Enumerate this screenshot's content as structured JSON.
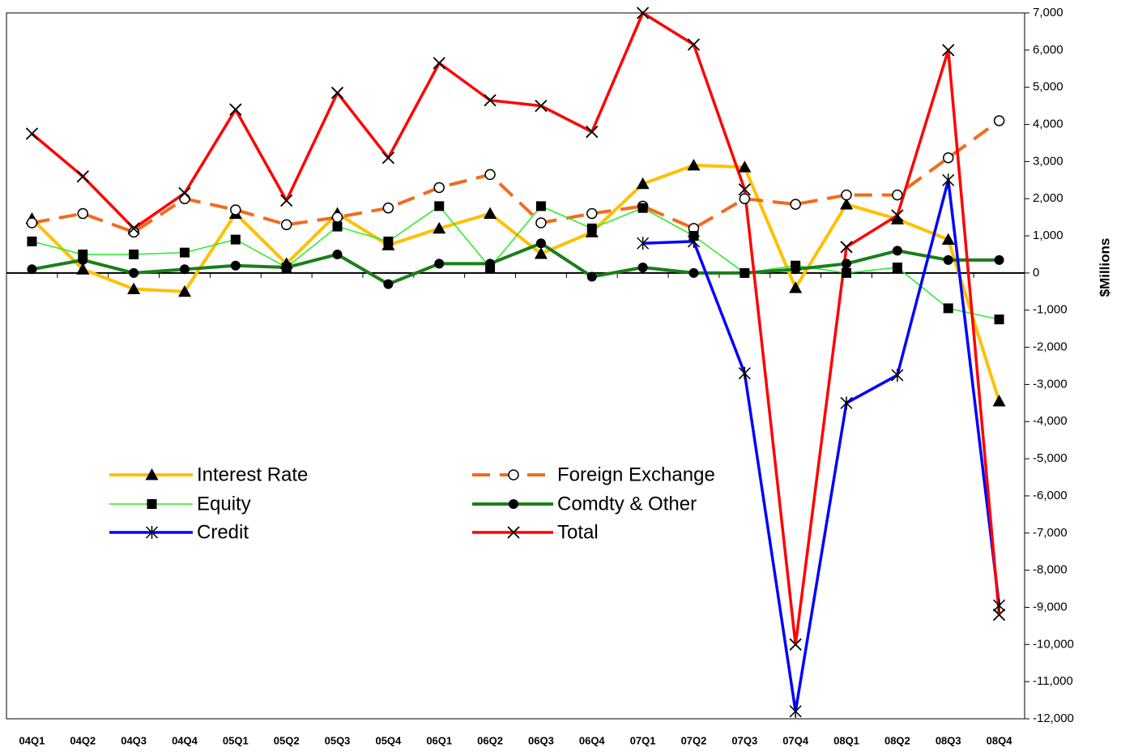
{
  "chart_data": {
    "type": "line",
    "y_label": "$Millions",
    "categories": [
      "04Q1",
      "04Q2",
      "04Q3",
      "04Q4",
      "05Q1",
      "05Q2",
      "05Q3",
      "05Q4",
      "06Q1",
      "06Q2",
      "06Q3",
      "06Q4",
      "07Q1",
      "07Q2",
      "07Q3",
      "07Q4",
      "08Q1",
      "08Q2",
      "08Q3",
      "08Q4"
    ],
    "series": [
      {
        "name": "Interest Rate",
        "color": "#ffc000",
        "marker": "triangle",
        "line_style": "solid",
        "line_width": 4,
        "values": [
          1460,
          100,
          -430,
          -500,
          1600,
          250,
          1600,
          750,
          1200,
          1600,
          520,
          1100,
          2400,
          2900,
          2850,
          -400,
          1850,
          1450,
          900,
          -3450
        ]
      },
      {
        "name": "Foreign Exchange",
        "color": "#f26b1d",
        "marker": "open-circle",
        "line_style": "dashed",
        "line_width": 4,
        "values": [
          1350,
          1600,
          1100,
          2000,
          1700,
          1300,
          1500,
          1750,
          2300,
          2650,
          1350,
          1600,
          1800,
          1200,
          2000,
          1850,
          2100,
          2100,
          3100,
          4100
        ]
      },
      {
        "name": "Equity",
        "color": "#22ee22",
        "marker": "square",
        "line_style": "solid",
        "line_width": 1.5,
        "values": [
          850,
          500,
          500,
          550,
          900,
          150,
          1250,
          850,
          1800,
          150,
          1800,
          1200,
          1750,
          1000,
          0,
          200,
          0,
          150,
          -950,
          -1250
        ]
      },
      {
        "name": "Comdty & Other",
        "color": "#1a7f1a",
        "marker": "circle",
        "line_style": "solid",
        "line_width": 4,
        "values": [
          100,
          350,
          0,
          100,
          200,
          150,
          500,
          -300,
          250,
          250,
          800,
          -100,
          150,
          0,
          0,
          100,
          250,
          600,
          350,
          350
        ]
      },
      {
        "name": "Credit",
        "color": "#0000ff",
        "marker": "asterisk",
        "line_style": "solid",
        "line_width": 3.5,
        "values": [
          null,
          null,
          null,
          null,
          null,
          null,
          null,
          null,
          null,
          null,
          null,
          null,
          800,
          850,
          -2700,
          -11800,
          -3500,
          -2750,
          2500,
          -8950
        ]
      },
      {
        "name": "Total",
        "color": "#ff0000",
        "marker": "x",
        "line_style": "solid",
        "line_width": 3.5,
        "values": [
          3750,
          2600,
          1200,
          2150,
          4400,
          1950,
          4850,
          3100,
          5650,
          4650,
          4500,
          3800,
          7000,
          6150,
          2250,
          -10000,
          700,
          1550,
          6000,
          -9200
        ]
      }
    ],
    "ylim": [
      -12000,
      7000
    ],
    "yticks": [
      {
        "value": 7000,
        "label": "7,000"
      },
      {
        "value": 6000,
        "label": "6,000"
      },
      {
        "value": 5000,
        "label": "5,000"
      },
      {
        "value": 4000,
        "label": "4,000"
      },
      {
        "value": 3000,
        "label": "3,000"
      },
      {
        "value": 2000,
        "label": "2,000"
      },
      {
        "value": 1000,
        "label": "1,000"
      },
      0,
      {
        "value": -1000,
        "label": "-1,000"
      },
      {
        "value": -2000,
        "label": "-2,000"
      },
      {
        "value": -3000,
        "label": "-3,000"
      },
      {
        "value": -4000,
        "label": "-4,000"
      },
      {
        "value": -5000,
        "label": "-5,000"
      },
      {
        "value": -6000,
        "label": "-6,000"
      },
      {
        "value": -7000,
        "label": "-7,000"
      },
      {
        "value": -8000,
        "label": "-8,000"
      },
      {
        "value": -9000,
        "label": "-9,000"
      },
      {
        "value": -10000,
        "label": "-10,000"
      },
      {
        "value": -11000,
        "label": "-11,000"
      },
      {
        "value": -12000,
        "label": "-12,000"
      }
    ],
    "y_axis_side": "right",
    "legend_position": "lower left"
  }
}
